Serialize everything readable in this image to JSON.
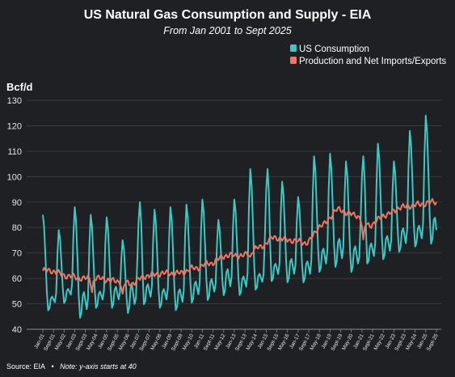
{
  "chart_data": {
    "type": "line",
    "title": "US Natural Gas Consumption and Supply - EIA",
    "subtitle": "From Jan 2001 to Sept 2025",
    "ylabel": "Bcf/d",
    "xlabel": "",
    "ylim": [
      40,
      130
    ],
    "yticks": [
      40,
      50,
      60,
      70,
      80,
      90,
      100,
      110,
      120,
      130
    ],
    "grid": true,
    "legend_position": "top-right",
    "x_tick_labels": [
      "Jan-01",
      "Sept-01",
      "May-02",
      "Jan-03",
      "Sept-03",
      "May-04",
      "Jan-05",
      "Sept-05",
      "May-06",
      "Jan-07",
      "Sept-07",
      "May-08",
      "Jan-09",
      "Sept-09",
      "May-10",
      "Jan-11",
      "Sept-11",
      "May-12",
      "Jan-13",
      "Sept-13",
      "May-14",
      "Jan-15",
      "Sept-15",
      "May-16",
      "Jan-17",
      "Sept-17",
      "May-18",
      "Jan-19",
      "Sept-19",
      "May-20",
      "Jan-21",
      "Sept-21",
      "May-22",
      "Jan-23",
      "Sept-23",
      "May-24",
      "Jan-25",
      "Sept-25"
    ],
    "series": [
      {
        "name": "US Consumption",
        "color": "#3cc8c4",
        "winter_peaks": [
          [
            "2001-01",
            85
          ],
          [
            "2002-01",
            79
          ],
          [
            "2003-01",
            88
          ],
          [
            "2004-01",
            85
          ],
          [
            "2005-01",
            84
          ],
          [
            "2006-01",
            75
          ],
          [
            "2007-02",
            90
          ],
          [
            "2008-01",
            87
          ],
          [
            "2009-01",
            88
          ],
          [
            "2010-01",
            89
          ],
          [
            "2011-01",
            91
          ],
          [
            "2012-01",
            83
          ],
          [
            "2013-01",
            91
          ],
          [
            "2014-01",
            103
          ],
          [
            "2015-02",
            103
          ],
          [
            "2016-01",
            98
          ],
          [
            "2017-01",
            92
          ],
          [
            "2018-01",
            108
          ],
          [
            "2019-01",
            109
          ],
          [
            "2020-01",
            106
          ],
          [
            "2021-02",
            108
          ],
          [
            "2022-01",
            113
          ],
          [
            "2023-01",
            106
          ],
          [
            "2024-01",
            118
          ],
          [
            "2025-01",
            124
          ]
        ],
        "spring_troughs": [
          [
            2001,
            47
          ],
          [
            2002,
            50
          ],
          [
            2003,
            44
          ],
          [
            2004,
            48
          ],
          [
            2005,
            48
          ],
          [
            2006,
            46
          ],
          [
            2007,
            49
          ],
          [
            2008,
            48
          ],
          [
            2009,
            47
          ],
          [
            2010,
            50
          ],
          [
            2011,
            51
          ],
          [
            2012,
            53
          ],
          [
            2013,
            53
          ],
          [
            2014,
            55
          ],
          [
            2015,
            58
          ],
          [
            2016,
            58
          ],
          [
            2017,
            58
          ],
          [
            2018,
            62
          ],
          [
            2019,
            64
          ],
          [
            2020,
            62
          ],
          [
            2021,
            65
          ],
          [
            2022,
            67
          ],
          [
            2023,
            70
          ],
          [
            2024,
            72
          ],
          [
            2025,
            73
          ]
        ],
        "summer_peaks": [
          [
            2001,
            53
          ],
          [
            2002,
            56
          ],
          [
            2003,
            55
          ],
          [
            2004,
            55
          ],
          [
            2005,
            57
          ],
          [
            2006,
            58
          ],
          [
            2007,
            58
          ],
          [
            2008,
            56
          ],
          [
            2009,
            56
          ],
          [
            2010,
            59
          ],
          [
            2011,
            60
          ],
          [
            2012,
            64
          ],
          [
            2013,
            61
          ],
          [
            2014,
            62
          ],
          [
            2015,
            66
          ],
          [
            2016,
            68
          ],
          [
            2017,
            67
          ],
          [
            2018,
            72
          ],
          [
            2019,
            76
          ],
          [
            2020,
            73
          ],
          [
            2021,
            74
          ],
          [
            2022,
            77
          ],
          [
            2023,
            80
          ],
          [
            2024,
            81
          ],
          [
            2025,
            85
          ]
        ],
        "last_value": [
          "2025-09",
          79
        ]
      },
      {
        "name": "Production and Net Imports/Exports",
        "color": "#f07565",
        "annual_levels": [
          [
            2001,
            63
          ],
          [
            2002,
            61
          ],
          [
            2003,
            60
          ],
          [
            2004,
            60
          ],
          [
            2005,
            59
          ],
          [
            2006,
            58
          ],
          [
            2007,
            61
          ],
          [
            2008,
            62
          ],
          [
            2009,
            62
          ],
          [
            2010,
            64
          ],
          [
            2011,
            66
          ],
          [
            2012,
            69
          ],
          [
            2013,
            69
          ],
          [
            2014,
            72
          ],
          [
            2015,
            76
          ],
          [
            2016,
            75
          ],
          [
            2017,
            74
          ],
          [
            2018,
            81
          ],
          [
            2019,
            87
          ],
          [
            2020,
            85
          ],
          [
            2021,
            81
          ],
          [
            2022,
            85
          ],
          [
            2023,
            88
          ],
          [
            2024,
            89
          ],
          [
            2025,
            90
          ]
        ],
        "winter_dips": [
          [
            "2004-02",
            55
          ],
          [
            "2006-01",
            53
          ],
          [
            "2014-01",
            68
          ],
          [
            "2021-02",
            74
          ]
        ]
      }
    ]
  },
  "footer": {
    "source": "Source: EIA",
    "separator": "•",
    "note": "Note: y-axis starts at 40"
  }
}
